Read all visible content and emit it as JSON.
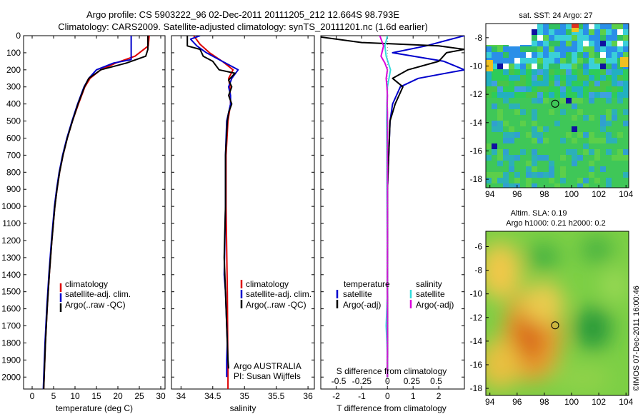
{
  "header": {
    "line1": "Argo profile: CS 5903222_96 02-Dec-2011 20111205_212 12.664S 98.793E",
    "line2": "Climatology: CARS2009. Satellite-adjusted climatology: synTS_20111201.nc (1.6d earlier)"
  },
  "colors": {
    "climatology": "#dd0000",
    "satellite": "#0000cc",
    "argo": "#000000",
    "sat_salinity": "#33dddd",
    "argo_salinity_adj": "#dd00dd"
  },
  "chart_data": [
    {
      "id": "temperature",
      "type": "line",
      "xlabel": "temperature (deg C)",
      "ylabel": "",
      "xlim": [
        -2,
        31
      ],
      "ylim": [
        2070,
        0
      ],
      "xticks": [
        0,
        5,
        10,
        15,
        20,
        25,
        30
      ],
      "yticks": [
        0,
        100,
        200,
        300,
        400,
        500,
        600,
        700,
        800,
        900,
        1000,
        1100,
        1200,
        1300,
        1400,
        1500,
        1600,
        1700,
        1800,
        1900,
        2000
      ],
      "legend": [
        "climatology",
        "satellite-adj. clim.",
        "Argo(..raw -QC)"
      ],
      "series": [
        {
          "name": "climatology",
          "color_key": "climatology",
          "depth": [
            0,
            60,
            120,
            160,
            200,
            250,
            300,
            400,
            500,
            600,
            700,
            800,
            900,
            1000,
            1200,
            1400,
            1600,
            1800,
            2000,
            2070
          ],
          "values": [
            27.3,
            27.1,
            24,
            19.5,
            16,
            13.5,
            12.3,
            10.8,
            9.4,
            8.2,
            7.2,
            6.4,
            5.8,
            5.3,
            4.6,
            4.0,
            3.5,
            3.1,
            2.8,
            2.7
          ]
        },
        {
          "name": "satellite-adj. clim.",
          "color_key": "satellite",
          "depth": [
            0,
            140,
            160,
            200,
            250,
            300,
            400,
            500,
            600,
            700,
            800,
            900,
            1000,
            1200,
            1400,
            1600,
            1800,
            2000,
            2070
          ],
          "values": [
            23.1,
            23.1,
            19,
            15,
            13.2,
            12.1,
            10.6,
            9.3,
            8.1,
            7.1,
            6.3,
            5.7,
            5.2,
            4.5,
            3.9,
            3.4,
            3.0,
            2.7,
            2.6
          ]
        },
        {
          "name": "Argo(..raw -QC)",
          "color_key": "argo",
          "depth": [
            0,
            80,
            120,
            160,
            200,
            250,
            300,
            400,
            500,
            600,
            700,
            800,
            900,
            1000,
            1200,
            1400,
            1600,
            1800,
            2000,
            2070
          ],
          "values": [
            27.0,
            27.0,
            26.5,
            22,
            16,
            13.2,
            12.2,
            10.7,
            9.4,
            8.2,
            7.2,
            6.4,
            5.8,
            5.3,
            4.6,
            4.0,
            3.5,
            3.1,
            2.8,
            2.7
          ]
        }
      ]
    },
    {
      "id": "salinity",
      "type": "line",
      "xlabel": "salinity",
      "xlim": [
        33.85,
        36.1
      ],
      "ylim": [
        2070,
        0
      ],
      "xticks": [
        34,
        34.5,
        35,
        35.5,
        36
      ],
      "legend": [
        "climatology",
        "satellite-adj. clim.",
        "Argo(..raw -QC)"
      ],
      "annotation": [
        "Argo AUSTRALIA",
        "PI: Susan Wijffels"
      ],
      "series": [
        {
          "name": "climatology",
          "color_key": "climatology",
          "depth": [
            0,
            50,
            100,
            150,
            200,
            250,
            300,
            400,
            500,
            700,
            1000,
            1500,
            2000,
            2070
          ],
          "values": [
            34.2,
            34.3,
            34.45,
            34.65,
            34.82,
            34.75,
            34.77,
            34.78,
            34.74,
            34.71,
            34.71,
            34.73,
            34.74,
            34.74
          ]
        },
        {
          "name": "satellite-adj. clim.",
          "color_key": "satellite",
          "depth": [
            0,
            20,
            60,
            100,
            150,
            200,
            250,
            300,
            350,
            400,
            500,
            700,
            1000,
            1400,
            1500,
            1800,
            1900,
            2000
          ],
          "values": [
            34.3,
            34.15,
            34.25,
            34.4,
            34.65,
            34.9,
            34.8,
            34.75,
            34.78,
            34.78,
            34.72,
            34.7,
            34.7,
            34.68,
            34.7,
            34.73,
            34.72,
            34.72
          ]
        },
        {
          "name": "Argo(..raw -QC)",
          "color_key": "argo",
          "depth": [
            0,
            60,
            80,
            120,
            150,
            200,
            220,
            260,
            300,
            350,
            400,
            450,
            500,
            700,
            1000,
            1300,
            1500,
            1700,
            1900,
            1950
          ],
          "values": [
            34.1,
            34.1,
            34.3,
            34.35,
            34.5,
            34.6,
            34.85,
            34.75,
            34.8,
            34.75,
            34.8,
            34.75,
            34.73,
            34.7,
            34.7,
            34.68,
            34.7,
            34.72,
            34.74,
            34.75
          ]
        }
      ]
    },
    {
      "id": "difference",
      "type": "line",
      "xlabel": "T difference from climatology",
      "xlabel_top": "S difference from climatology",
      "xlim": [
        -2.6,
        3.0
      ],
      "ylim": [
        2070,
        0
      ],
      "xticks": [
        -2,
        -1,
        0,
        1,
        2
      ],
      "xticks_top": [
        "-0.5",
        "-0.25",
        "0",
        "0.25",
        "0.5"
      ],
      "legend_headings": [
        "temperature",
        "salinity"
      ],
      "legend": [
        "satellite",
        "Argo(-adj)",
        "satellite",
        "Argo(-adj)"
      ],
      "series": [
        {
          "name": "temperature satellite",
          "color_key": "satellite",
          "depth": [
            0,
            60,
            100,
            150,
            200,
            250,
            300,
            400,
            500,
            700,
            900,
            1200,
            1600,
            2000
          ],
          "values": [
            3.0,
            1.5,
            0.2,
            2.2,
            3.0,
            1.2,
            0.5,
            0.2,
            0.1,
            0.05,
            0.0,
            0.0,
            0.0,
            0.0
          ]
        },
        {
          "name": "temperature Argo(-adj)",
          "color_key": "argo",
          "depth": [
            0,
            40,
            60,
            80,
            100,
            150,
            200,
            250,
            300,
            400,
            500,
            700,
            900,
            1200,
            1600,
            2000
          ],
          "values": [
            -3.0,
            -1.0,
            2.0,
            3.0,
            2.3,
            2.0,
            0.8,
            0.2,
            0.6,
            0.3,
            0.1,
            0.05,
            0.0,
            0.0,
            0.0,
            0.0
          ]
        },
        {
          "name": "salinity satellite",
          "color_key": "sat_salinity",
          "depth": [
            0,
            60,
            120,
            200,
            300,
            400,
            500,
            700,
            900,
            1200,
            1500,
            1700,
            1800,
            1900,
            2000
          ],
          "values": [
            0.0,
            -0.1,
            -0.05,
            0.12,
            0.0,
            -0.02,
            -0.03,
            -0.02,
            -0.02,
            -0.01,
            0.0,
            -0.05,
            -0.02,
            0.0,
            0.0
          ]
        },
        {
          "name": "salinity Argo(-adj)",
          "color_key": "argo_salinity_adj",
          "depth": [
            0,
            60,
            120,
            160,
            200,
            250,
            300,
            350,
            400,
            450,
            500,
            700,
            1000,
            1300,
            1500,
            1700,
            2000
          ],
          "values": [
            -0.3,
            -0.15,
            -0.25,
            -0.1,
            0.0,
            -0.05,
            -0.02,
            0.0,
            -0.01,
            0.0,
            0.0,
            0.0,
            0.0,
            0.0,
            0.0,
            0.0,
            0.0
          ]
        }
      ]
    },
    {
      "id": "sat-sst-map",
      "type": "heatmap",
      "title": "sat. SST: 24 Argo: 27",
      "xlim": [
        93.7,
        104.2
      ],
      "ylim": [
        -18.6,
        -7
      ],
      "xticks": [
        94,
        96,
        98,
        100,
        102,
        104
      ],
      "yticks": [
        -8,
        -10,
        -12,
        -14,
        -16,
        -18
      ],
      "float_position": {
        "lon": 98.793,
        "lat": -12.664
      }
    },
    {
      "id": "altim-sla-map",
      "type": "heatmap",
      "title_line1": "Altim. SLA: 0.19",
      "title_line2": "Argo h1000: 0.21 h2000: 0.2",
      "xlim": [
        93.7,
        104.2
      ],
      "ylim": [
        -18.6,
        -4.7
      ],
      "xticks": [
        94,
        96,
        98,
        100,
        102,
        104
      ],
      "yticks": [
        -6,
        -8,
        -10,
        -12,
        -14,
        -16,
        -18
      ],
      "float_position": {
        "lon": 98.793,
        "lat": -12.664
      }
    }
  ],
  "credit": "©IMOS 07-Dec-2011 16:00:46"
}
